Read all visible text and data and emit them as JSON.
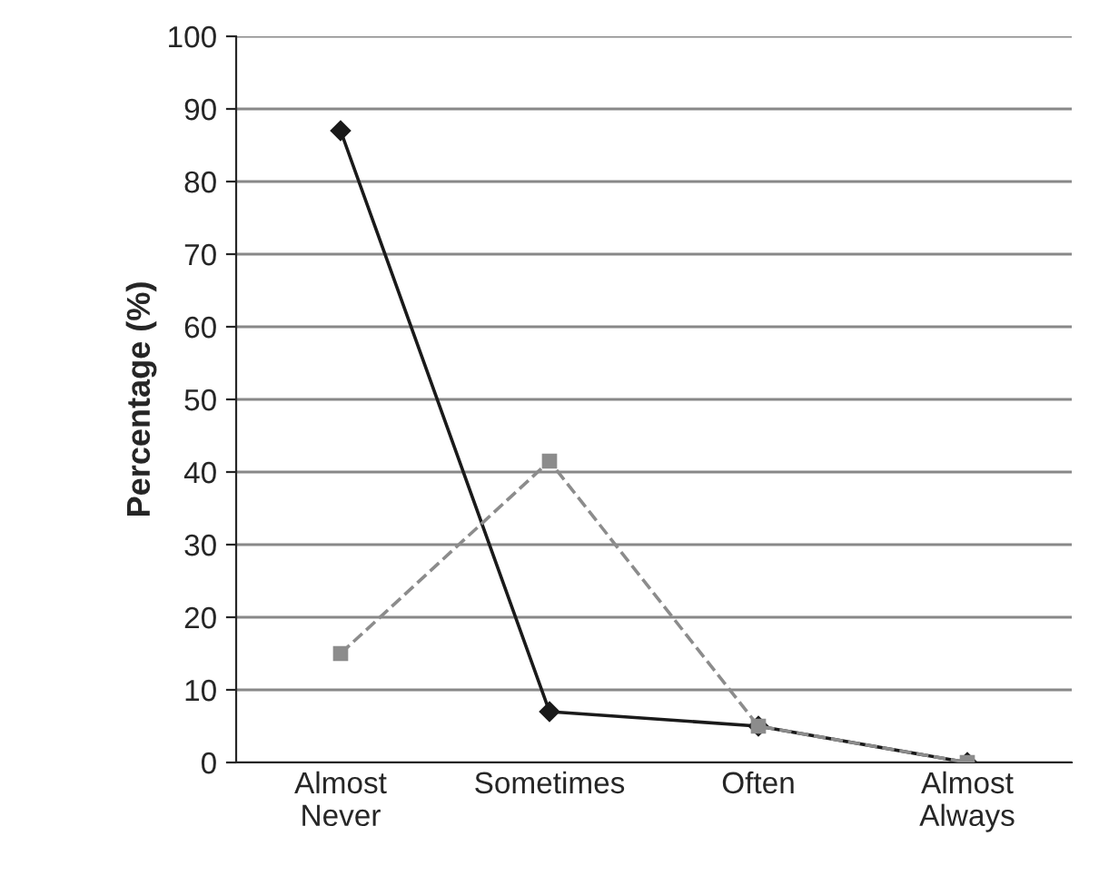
{
  "chart_data": {
    "type": "line",
    "ylabel": "Percentage (%)",
    "categories": [
      "Almost Never",
      "Sometimes",
      "Often",
      "Almost Always"
    ],
    "series": [
      {
        "color": "#1a1a1a",
        "values": [
          87,
          7,
          5,
          0
        ],
        "marker": "diamond",
        "line_style": "solid"
      },
      {
        "color": "#8c8c8c",
        "values": [
          15,
          41.5,
          5,
          0
        ],
        "marker": "square",
        "line_style": "dashed"
      }
    ],
    "ylim": [
      0,
      100
    ],
    "yticks": [
      0,
      10,
      20,
      30,
      40,
      50,
      60,
      70,
      80,
      90,
      100
    ],
    "grid": "y"
  }
}
